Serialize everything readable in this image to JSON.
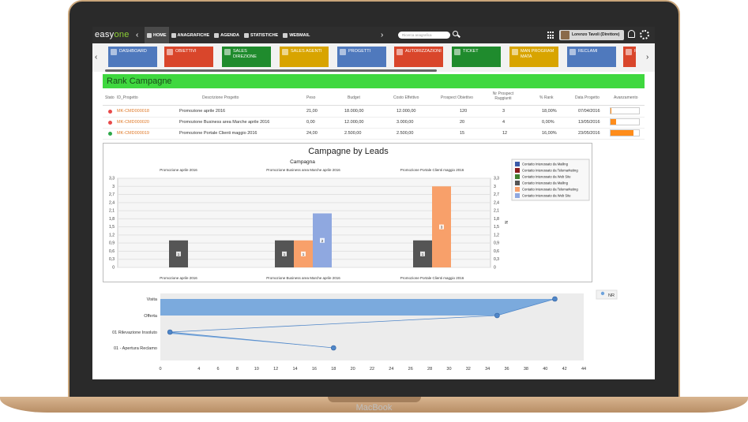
{
  "device": {
    "label": "MacBook"
  },
  "topbar": {
    "logo_a": "easy",
    "logo_b": "one",
    "menu": [
      "HOME",
      "ANAGRAFICHE",
      "AGENDA",
      "STATISTICHE",
      "WEBMAIL"
    ],
    "search_placeholder": "Ricerca anagrafica",
    "user": "Lorenzo Tavoli (Direttore)"
  },
  "tiles": [
    {
      "label": "DASHBOARD",
      "color": "#4f79bd"
    },
    {
      "label": "OBIETTIVI",
      "color": "#d9462b"
    },
    {
      "label": "SALES DIREZIONE",
      "color": "#1f8b2d"
    },
    {
      "label": "SALES AGENTI",
      "color": "#d8a400"
    },
    {
      "label": "PROGETTI",
      "color": "#4f79bd"
    },
    {
      "label": "AUTORIZZAZIONI",
      "color": "#d9462b"
    },
    {
      "label": "TICKET",
      "color": "#1f8b2d"
    },
    {
      "label": "MAN PROGRAM MATA",
      "color": "#d8a400"
    },
    {
      "label": "RECLAMI",
      "color": "#4f79bd"
    },
    {
      "label": "R",
      "color": "#d9462b"
    }
  ],
  "rank": {
    "title": "Rank Campagne",
    "headers": [
      "Stato",
      "ID_Progetto",
      "Descrizione Progetto",
      "Peso",
      "Budget",
      "Costo Effettivo",
      "Prospect Obiettivo",
      "Nr Prospect Raggiunti",
      "% Rank",
      "Data Progetto",
      "Avanzamento"
    ],
    "rows": [
      {
        "status_color": "#e84a4a",
        "id": "MK-CMD000018",
        "desc": "Promozione aprile 2016",
        "peso": "21,00",
        "budget": "18.000,00",
        "costo": "12.000,00",
        "obiettivo": "120",
        "raggiunti": "3",
        "rank": "18,00%",
        "data": "07/04/2016",
        "progress": 0.03
      },
      {
        "status_color": "#e84a4a",
        "id": "MK-CMD000020",
        "desc": "Promozione Business area Marche aprile 2016",
        "peso": "0,00",
        "budget": "12.000,00",
        "costo": "3.000,00",
        "obiettivo": "20",
        "raggiunti": "4",
        "rank": "0,00%",
        "data": "13/05/2016",
        "progress": 0.2
      },
      {
        "status_color": "#2ea84a",
        "id": "MK-CMD000019",
        "desc": "Promozione Portale Clienti maggio 2016",
        "peso": "24,00",
        "budget": "2.500,00",
        "costo": "2.500,00",
        "obiettivo": "15",
        "raggiunti": "12",
        "rank": "16,00%",
        "data": "23/05/2016",
        "progress": 0.8
      }
    ]
  },
  "chart_data": [
    {
      "type": "bar",
      "title": "Campagne by Leads",
      "subtitle": "Campagna",
      "categories": [
        "Promozione aprile 2016",
        "Promozione Business area Marche aprile 2016",
        "Promozione Portale Clienti maggio 2016"
      ],
      "ylim": [
        0,
        3.3
      ],
      "yticks": [
        0,
        0.3,
        0.6,
        0.9,
        1.2,
        1.5,
        1.8,
        2.1,
        2.4,
        2.7,
        3,
        3.3
      ],
      "y_right_label": "N",
      "legend_position": "right",
      "series": [
        {
          "name": "Contatto Interessato da Mailing",
          "color": "#3a5aa8",
          "values": [
            0,
            0,
            0
          ]
        },
        {
          "name": "Contatto Interessato da Telemarketing",
          "color": "#8b1c1c",
          "values": [
            0,
            0,
            0
          ]
        },
        {
          "name": "Contatto Interessato da Web Site",
          "color": "#3f7f2e",
          "values": [
            0,
            0,
            0
          ]
        },
        {
          "name": "Contatto Interessato da Mailing",
          "color": "#555555",
          "values": [
            1,
            1,
            1
          ]
        },
        {
          "name": "Contatto Interessato da Telemarketing",
          "color": "#f8a06a",
          "values": [
            0,
            1,
            3
          ]
        },
        {
          "name": "Contatto Interessato da Web Site",
          "color": "#8fa8e0",
          "values": [
            0,
            2,
            0
          ]
        }
      ],
      "bar_labels": [
        [
          "1"
        ],
        [
          "1",
          "1",
          "2"
        ],
        [
          "1",
          "3"
        ]
      ]
    },
    {
      "type": "area",
      "categories": [
        "Visita",
        "Offerta",
        "01 Rilevazione Insoluto",
        "01 - Apertura Reclamo"
      ],
      "xlim": [
        0,
        44
      ],
      "xticks": [
        0,
        4,
        6,
        8,
        10,
        12,
        14,
        16,
        18,
        20,
        22,
        24,
        26,
        28,
        30,
        32,
        34,
        36,
        38,
        40,
        42,
        44
      ],
      "points": [
        {
          "category": "Visita",
          "x": 41
        },
        {
          "category": "Offerta",
          "x": 35
        },
        {
          "category": "01 Rilevazione Insoluto",
          "x": 1
        },
        {
          "category": "01 - Apertura Reclamo",
          "x": 18
        }
      ],
      "legend": [
        "NR"
      ]
    }
  ]
}
